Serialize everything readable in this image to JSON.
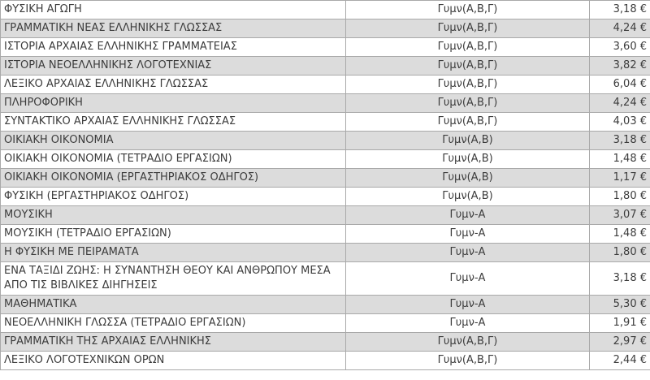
{
  "colors": {
    "stripe": "#dcdcdc",
    "row_bg": "#ffffff",
    "border": "#a9a9a9",
    "text": "#3c3c3c"
  },
  "table": {
    "columns": [
      "book_title",
      "class_level",
      "price"
    ],
    "currency_symbol": "€",
    "rows": [
      {
        "title": "ΦΥΣΙΚΗ ΑΓΩΓΗ",
        "level": "Γυμν(Α,Β,Γ)",
        "price": "3,18 €"
      },
      {
        "title": "ΓΡΑΜΜΑΤΙΚΗ ΝΕΑΣ ΕΛΛΗΝΙΚΗΣ ΓΛΩΣΣΑΣ",
        "level": "Γυμν(Α,Β,Γ)",
        "price": "4,24 €"
      },
      {
        "title": "ΙΣΤΟΡΙΑ ΑΡΧΑΙΑΣ ΕΛΛΗΝΙΚΗΣ ΓΡΑΜΜΑΤΕΙΑΣ",
        "level": "Γυμν(Α,Β,Γ)",
        "price": "3,60 €"
      },
      {
        "title": "ΙΣΤΟΡΙΑ ΝΕΟΕΛΛΗΝΙΚΗΣ ΛΟΓΟΤΕΧΝΙΑΣ",
        "level": "Γυμν(Α,Β,Γ)",
        "price": "3,82 €"
      },
      {
        "title": "ΛΕΞΙΚΟ ΑΡΧΑΙΑΣ ΕΛΛΗΝΙΚΗΣ ΓΛΩΣΣΑΣ",
        "level": "Γυμν(Α,Β,Γ)",
        "price": "6,04 €"
      },
      {
        "title": "ΠΛΗΡΟΦΟΡΙΚΗ",
        "level": "Γυμν(Α,Β,Γ)",
        "price": "4,24 €"
      },
      {
        "title": "ΣΥΝΤΑΚΤΙΚΟ ΑΡΧΑΙΑΣ ΕΛΛΗΝΙΚΗΣ ΓΛΩΣΣΑΣ",
        "level": "Γυμν(Α,Β,Γ)",
        "price": "4,03 €"
      },
      {
        "title": "ΟΙΚΙΑΚΗ ΟΙΚΟΝΟΜΙΑ",
        "level": "Γυμν(Α,Β)",
        "price": "3,18 €"
      },
      {
        "title": "ΟΙΚΙΑΚΗ ΟΙΚΟΝΟΜΙΑ (ΤΕΤΡΑΔΙΟ ΕΡΓΑΣΙΩΝ)",
        "level": "Γυμν(Α,Β)",
        "price": "1,48 €"
      },
      {
        "title": "ΟΙΚΙΑΚΗ ΟΙΚΟΝΟΜΙΑ (ΕΡΓΑΣΤΗΡΙΑΚΟΣ ΟΔΗΓΟΣ)",
        "level": "Γυμν(Α,Β)",
        "price": "1,17 €"
      },
      {
        "title": "ΦΥΣΙΚΗ (ΕΡΓΑΣΤΗΡΙΑΚΟΣ ΟΔΗΓΟΣ)",
        "level": "Γυμν(Α,Β)",
        "price": "1,80 €"
      },
      {
        "title": "ΜΟΥΣΙΚΗ",
        "level": "Γυμν-Α",
        "price": "3,07 €"
      },
      {
        "title": "ΜΟΥΣΙΚΗ (ΤΕΤΡΑΔΙΟ ΕΡΓΑΣΙΩΝ)",
        "level": "Γυμν-Α",
        "price": "1,48 €"
      },
      {
        "title": "Η ΦΥΣΙΚΗ ΜΕ ΠΕΙΡΑΜΑΤΑ",
        "level": "Γυμν-Α",
        "price": "1,80 €"
      },
      {
        "title": "ΕΝΑ ΤΑΞΙΔΙ ΖΩΗΣ: Η ΣΥΝΑΝΤΗΣΗ ΘΕΟΥ ΚΑΙ ΑΝΘΡΩΠΟΥ ΜΕΣΑ ΑΠΟ ΤΙΣ ΒΙΒΛΙΚΕΣ ΔΙΗΓΗΣΕΙΣ",
        "level": "Γυμν-Α",
        "price": "3,18 €"
      },
      {
        "title": "ΜΑΘΗΜΑΤΙΚΑ",
        "level": "Γυμν-Α",
        "price": "5,30 €"
      },
      {
        "title": "ΝΕΟΕΛΛΗΝΙΚΗ ΓΛΩΣΣΑ (ΤΕΤΡΑΔΙΟ ΕΡΓΑΣΙΩΝ)",
        "level": "Γυμν-Α",
        "price": "1,91 €"
      },
      {
        "title": "ΓΡΑΜΜΑΤΙΚΗ ΤΗΣ ΑΡΧΑΙΑΣ ΕΛΛΗΝΙΚΗΣ",
        "level": "Γυμν(Α,Β,Γ)",
        "price": "2,97 €"
      },
      {
        "title": "ΛΕΞΙΚΟ ΛΟΓΟΤΕΧΝΙΚΩΝ ΟΡΩΝ",
        "level": "Γυμν(Α,Β,Γ)",
        "price": "2,44 €"
      }
    ]
  }
}
